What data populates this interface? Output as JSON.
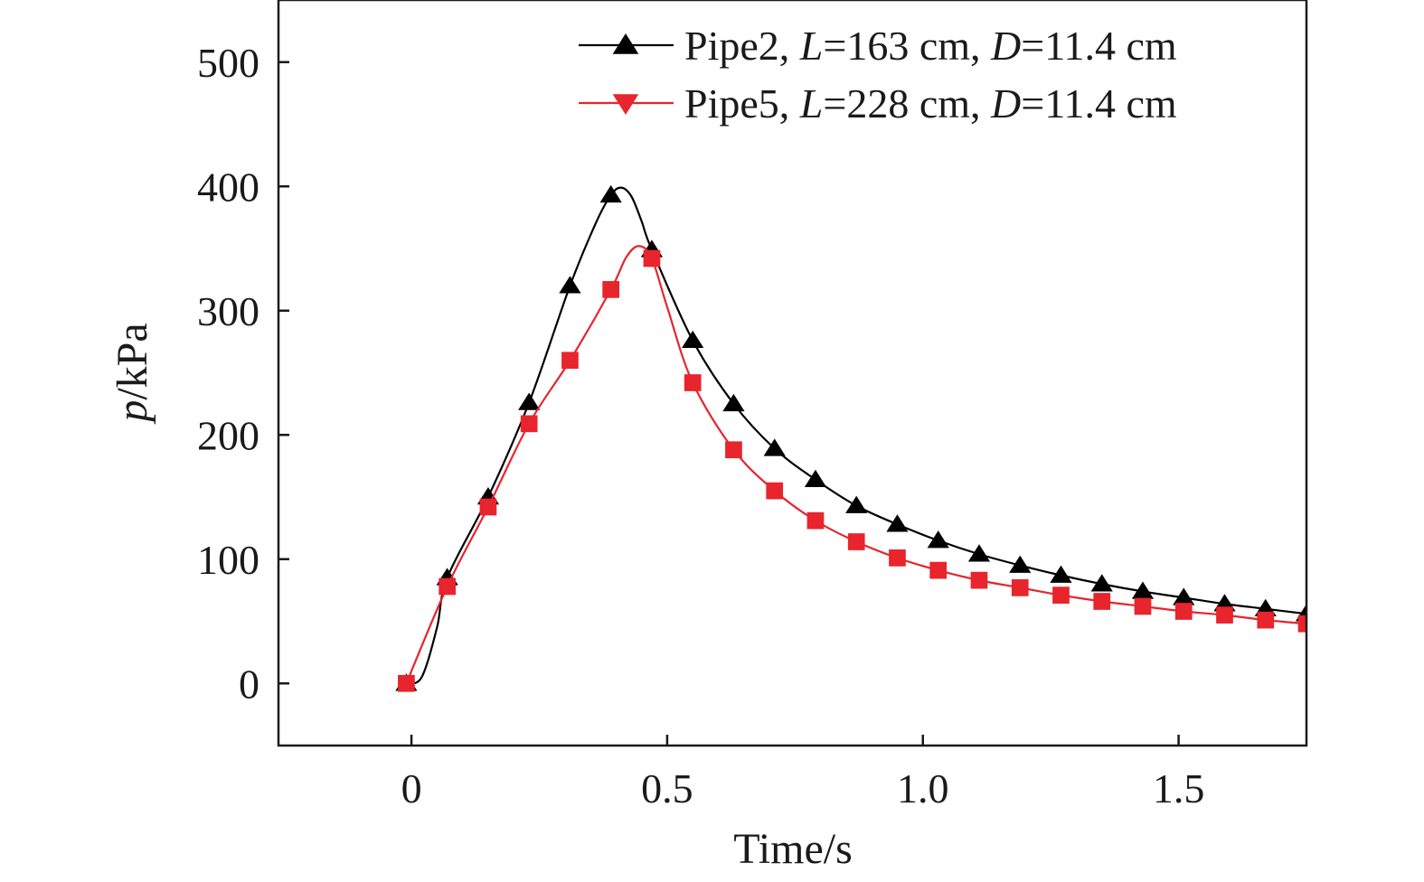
{
  "chart_data": {
    "type": "line",
    "xlabel": "Time/s",
    "ylabel": {
      "italic": "p",
      "rest": "/kPa"
    },
    "xlim": [
      -0.26,
      1.75
    ],
    "ylim": [
      -50,
      550
    ],
    "xticks": [
      0,
      0.5,
      1.0,
      1.5
    ],
    "xtick_labels": [
      "0",
      "0.5",
      "1.0",
      "1.5"
    ],
    "yticks": [
      0,
      100,
      200,
      300,
      400,
      500
    ],
    "ytick_labels": [
      "0",
      "100",
      "200",
      "300",
      "400",
      "500"
    ],
    "grid": false,
    "legend_position": "top-right",
    "series": [
      {
        "name_parts": [
          {
            "text": "Pipe2, ",
            "italic": false
          },
          {
            "text": "L",
            "italic": true
          },
          {
            "text": "=163 cm, ",
            "italic": false
          },
          {
            "text": "D",
            "italic": true
          },
          {
            "text": "=11.4 cm",
            "italic": false
          }
        ],
        "color": "#000000",
        "marker": "triangle-up",
        "legend_marker": "triangle-up",
        "points": [
          [
            -0.01,
            0
          ],
          [
            0.07,
            85
          ],
          [
            0.15,
            150
          ],
          [
            0.23,
            226
          ],
          [
            0.31,
            320
          ],
          [
            0.39,
            393
          ],
          [
            0.47,
            349
          ],
          [
            0.55,
            276
          ],
          [
            0.63,
            225
          ],
          [
            0.71,
            189
          ],
          [
            0.79,
            164
          ],
          [
            0.87,
            143
          ],
          [
            0.95,
            128
          ],
          [
            1.03,
            115
          ],
          [
            1.11,
            104
          ],
          [
            1.19,
            95
          ],
          [
            1.27,
            87
          ],
          [
            1.35,
            80
          ],
          [
            1.43,
            74
          ],
          [
            1.51,
            69
          ],
          [
            1.59,
            64
          ],
          [
            1.67,
            60
          ],
          [
            1.75,
            56
          ]
        ],
        "curve": [
          [
            -0.01,
            0
          ],
          [
            0.02,
            5
          ],
          [
            0.05,
            45
          ],
          [
            0.07,
            85
          ],
          [
            0.15,
            150
          ],
          [
            0.23,
            226
          ],
          [
            0.31,
            320
          ],
          [
            0.36,
            370
          ],
          [
            0.39,
            393
          ],
          [
            0.41,
            399
          ],
          [
            0.43,
            392
          ],
          [
            0.45,
            372
          ],
          [
            0.47,
            349
          ],
          [
            0.55,
            276
          ],
          [
            0.63,
            225
          ],
          [
            0.71,
            189
          ],
          [
            0.79,
            164
          ],
          [
            0.87,
            143
          ],
          [
            0.95,
            128
          ],
          [
            1.03,
            115
          ],
          [
            1.11,
            104
          ],
          [
            1.19,
            95
          ],
          [
            1.27,
            87
          ],
          [
            1.35,
            80
          ],
          [
            1.43,
            74
          ],
          [
            1.51,
            69
          ],
          [
            1.59,
            64
          ],
          [
            1.67,
            60
          ],
          [
            1.75,
            56
          ]
        ]
      },
      {
        "name_parts": [
          {
            "text": "Pipe5, ",
            "italic": false
          },
          {
            "text": "L",
            "italic": true
          },
          {
            "text": "=228 cm, ",
            "italic": false
          },
          {
            "text": "D",
            "italic": true
          },
          {
            "text": "=11.4 cm",
            "italic": false
          }
        ],
        "color": "#e8242d",
        "marker": "square",
        "legend_marker": "triangle-down",
        "points": [
          [
            -0.01,
            0
          ],
          [
            0.07,
            78
          ],
          [
            0.15,
            142
          ],
          [
            0.23,
            209
          ],
          [
            0.31,
            260
          ],
          [
            0.39,
            317
          ],
          [
            0.47,
            342
          ],
          [
            0.55,
            242
          ],
          [
            0.63,
            188
          ],
          [
            0.71,
            155
          ],
          [
            0.79,
            131
          ],
          [
            0.87,
            114
          ],
          [
            0.95,
            101
          ],
          [
            1.03,
            91
          ],
          [
            1.11,
            83
          ],
          [
            1.19,
            77
          ],
          [
            1.27,
            71
          ],
          [
            1.35,
            66
          ],
          [
            1.43,
            62
          ],
          [
            1.51,
            58
          ],
          [
            1.59,
            55
          ],
          [
            1.67,
            51
          ],
          [
            1.75,
            48
          ]
        ],
        "curve": [
          [
            -0.01,
            0
          ],
          [
            0.07,
            78
          ],
          [
            0.15,
            142
          ],
          [
            0.23,
            209
          ],
          [
            0.31,
            260
          ],
          [
            0.39,
            317
          ],
          [
            0.42,
            343
          ],
          [
            0.445,
            352
          ],
          [
            0.47,
            342
          ],
          [
            0.5,
            303
          ],
          [
            0.55,
            242
          ],
          [
            0.63,
            188
          ],
          [
            0.71,
            155
          ],
          [
            0.79,
            131
          ],
          [
            0.87,
            114
          ],
          [
            0.95,
            101
          ],
          [
            1.03,
            91
          ],
          [
            1.11,
            83
          ],
          [
            1.19,
            77
          ],
          [
            1.27,
            71
          ],
          [
            1.35,
            66
          ],
          [
            1.43,
            62
          ],
          [
            1.51,
            58
          ],
          [
            1.59,
            55
          ],
          [
            1.67,
            51
          ],
          [
            1.75,
            48
          ]
        ]
      }
    ]
  }
}
